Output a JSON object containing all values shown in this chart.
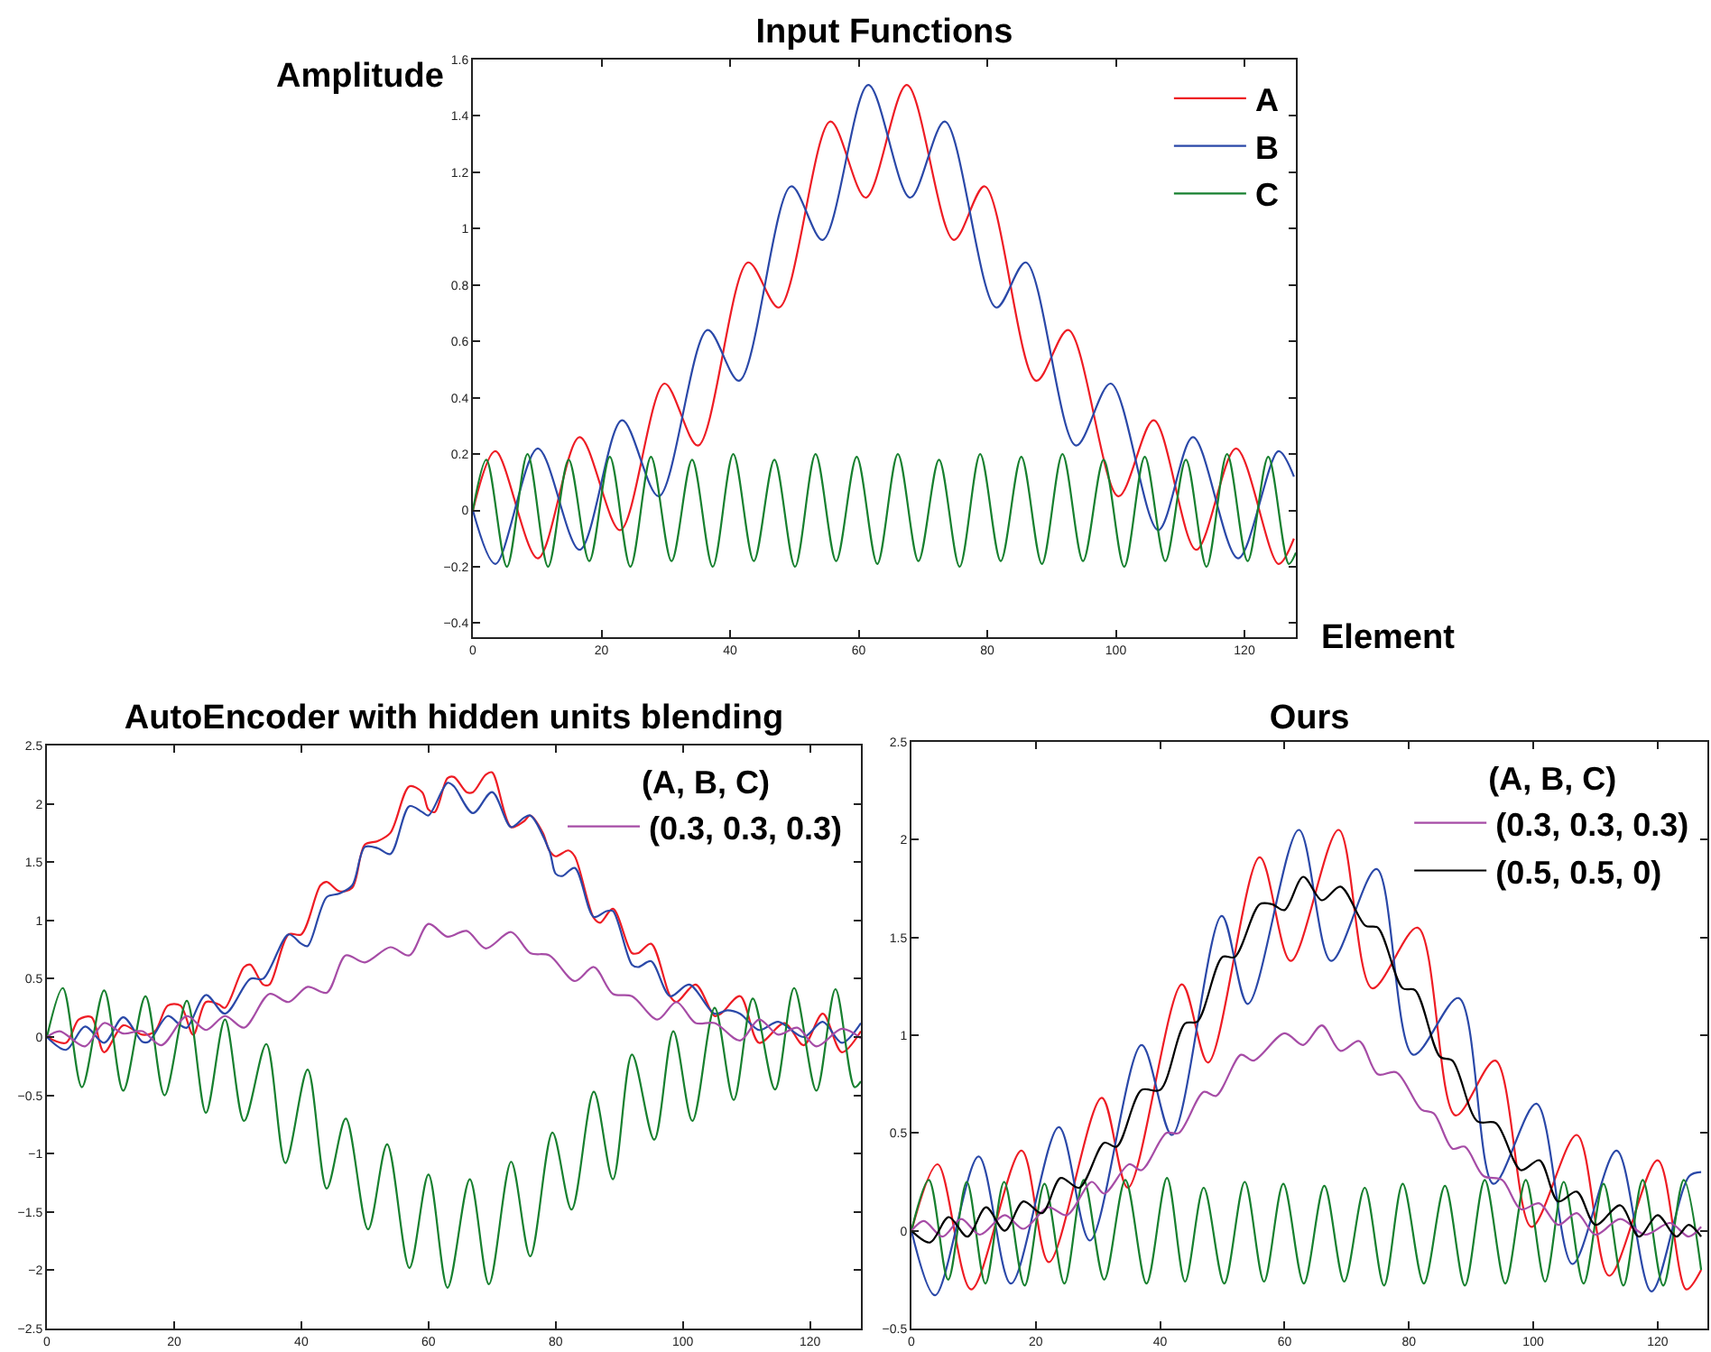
{
  "chart_data": [
    {
      "type": "line",
      "title": "Input Functions",
      "ylabel": "Amplitude",
      "xlabel": "Element",
      "xlim": [
        0,
        128
      ],
      "xticks": [
        0,
        20,
        40,
        60,
        80,
        100,
        120
      ],
      "ylim": [
        -0.45,
        1.6
      ],
      "yticks": [
        -0.4,
        -0.2,
        0,
        0.2,
        0.4,
        0.6,
        0.8,
        1,
        1.2,
        1.4,
        1.6
      ],
      "legend": "top right",
      "series": [
        {
          "name": "A",
          "color": "#ee1c24",
          "x": [
            0,
            3.5,
            10.1,
            16.6,
            22.9,
            29.8,
            35,
            42.8,
            47.6,
            55.6,
            61.1,
            67.5,
            74.8,
            79.6,
            87.6,
            92.6,
            100.4,
            105.9,
            112.5,
            118.7,
            125.3,
            127.7
          ],
          "values": [
            0,
            0.21,
            -0.17,
            0.26,
            -0.07,
            0.45,
            0.23,
            0.88,
            0.72,
            1.38,
            1.11,
            1.51,
            0.96,
            1.15,
            0.46,
            0.64,
            0.05,
            0.32,
            -0.14,
            0.22,
            -0.19,
            -0.1
          ]
        },
        {
          "name": "B",
          "color": "#2a48a8",
          "x": [
            0,
            3.5,
            10.1,
            16.6,
            23.2,
            28.9,
            36.5,
            41.4,
            49.5,
            54.4,
            61.5,
            68,
            73.4,
            81.4,
            86,
            93.8,
            99.2,
            106.6,
            112,
            119,
            125.3,
            127.7
          ],
          "values": [
            0,
            -0.19,
            0.22,
            -0.14,
            0.32,
            0.05,
            0.64,
            0.46,
            1.15,
            0.96,
            1.51,
            1.11,
            1.38,
            0.72,
            0.88,
            0.23,
            0.45,
            -0.07,
            0.26,
            -0.17,
            0.21,
            0.12
          ]
        },
        {
          "name": "C",
          "color": "#17802f",
          "x": [
            0,
            2.1,
            5.3,
            8.5,
            11.7,
            14.9,
            18.1,
            21.3,
            24.5,
            27.7,
            30.9,
            34.1,
            37.3,
            40.5,
            43.7,
            46.9,
            50.1,
            53.3,
            56.5,
            59.7,
            62.9,
            66.1,
            69.3,
            72.5,
            75.7,
            78.9,
            82.1,
            85.3,
            88.5,
            91.7,
            94.9,
            98.1,
            101.3,
            104.5,
            107.7,
            110.9,
            114.1,
            117.3,
            120.5,
            123.7,
            126.9,
            128
          ],
          "values": [
            0,
            0.18,
            -0.2,
            0.2,
            -0.2,
            0.18,
            -0.18,
            0.19,
            -0.2,
            0.19,
            -0.18,
            0.18,
            -0.2,
            0.2,
            -0.18,
            0.18,
            -0.2,
            0.2,
            -0.18,
            0.19,
            -0.19,
            0.2,
            -0.18,
            0.18,
            -0.2,
            0.2,
            -0.18,
            0.19,
            -0.19,
            0.2,
            -0.18,
            0.18,
            -0.2,
            0.19,
            -0.18,
            0.18,
            -0.2,
            0.2,
            -0.18,
            0.19,
            -0.19,
            -0.15
          ]
        }
      ]
    },
    {
      "type": "line",
      "title": "AutoEncoder with hidden units blending",
      "legend_title": "(A, B, C)",
      "xlim": [
        0,
        128
      ],
      "xticks": [
        0,
        20,
        40,
        60,
        80,
        100,
        120
      ],
      "ylim": [
        -2.5,
        2.5
      ],
      "yticks": [
        -2.5,
        -2,
        -1.5,
        -1,
        -0.5,
        0,
        0.5,
        1,
        1.5,
        2,
        2.5
      ],
      "legend": "top right",
      "series": [
        {
          "color": "#ee1c24",
          "x": [
            0,
            3,
            5,
            7,
            9,
            12,
            15,
            17,
            19,
            21,
            23,
            25,
            27,
            28,
            31,
            32,
            34,
            35,
            38,
            40,
            43,
            44,
            46,
            48,
            50,
            52,
            54,
            57,
            59,
            60,
            61,
            63,
            64,
            66,
            67,
            69,
            70,
            73,
            75,
            76,
            78,
            79,
            80,
            82,
            83,
            86,
            87,
            89,
            92,
            93,
            95,
            98,
            99,
            102,
            105,
            106,
            109,
            112,
            116,
            119,
            122,
            125,
            128
          ],
          "values": [
            0,
            -0.05,
            0.15,
            0.17,
            -0.13,
            0.1,
            0.02,
            0.05,
            0.27,
            0.27,
            0.02,
            0.3,
            0.28,
            0.25,
            0.6,
            0.62,
            0.45,
            0.45,
            0.88,
            0.88,
            1.3,
            1.33,
            1.25,
            1.28,
            1.65,
            1.68,
            1.75,
            2.15,
            2.1,
            1.95,
            1.93,
            2.22,
            2.23,
            2.1,
            2.1,
            2.25,
            2.27,
            1.8,
            1.85,
            1.9,
            1.75,
            1.6,
            1.55,
            1.6,
            1.55,
            1.02,
            0.98,
            1.1,
            0.72,
            0.72,
            0.8,
            0.35,
            0.3,
            0.45,
            0.18,
            0.2,
            0.35,
            -0.05,
            0.12,
            -0.07,
            0.2,
            -0.13,
            0.05
          ]
        },
        {
          "color": "#2a48a8",
          "x": [
            0,
            3,
            6,
            9,
            12,
            15,
            16,
            19,
            21,
            22,
            25,
            28,
            32,
            34,
            38,
            40,
            41,
            44,
            46,
            48,
            50,
            52,
            54,
            57,
            59,
            60,
            63,
            64,
            67,
            70,
            73,
            75,
            76,
            79,
            80,
            81,
            83,
            86,
            88,
            89,
            92,
            93,
            95,
            98,
            101,
            105,
            107,
            109,
            112,
            115,
            119,
            122,
            125,
            128
          ],
          "values": [
            0,
            -0.11,
            0.09,
            -0.05,
            0.17,
            -0.04,
            -0.04,
            0.18,
            0.1,
            0.08,
            0.36,
            0.2,
            0.5,
            0.5,
            0.88,
            0.8,
            0.78,
            1.2,
            1.23,
            1.3,
            1.63,
            1.62,
            1.57,
            1.98,
            1.93,
            1.9,
            2.18,
            2.15,
            1.92,
            2.1,
            1.8,
            1.88,
            1.9,
            1.6,
            1.4,
            1.38,
            1.45,
            1.03,
            1.08,
            1.08,
            0.62,
            0.6,
            0.65,
            0.35,
            0.45,
            0.2,
            0.23,
            0.2,
            0.06,
            0.13,
            0,
            0.13,
            -0.05,
            0.12
          ]
        },
        {
          "color": "#17802f",
          "x": [
            0,
            2.5,
            5.5,
            9,
            12,
            15.5,
            18.5,
            22,
            25,
            28,
            31,
            34.5,
            37.5,
            41,
            44,
            47,
            50.5,
            53.5,
            57,
            60,
            63,
            66.5,
            69.5,
            73,
            76,
            79.5,
            82.5,
            86,
            89,
            92,
            95.5,
            98.5,
            101.5,
            105,
            108,
            111,
            114.5,
            117.5,
            121,
            124,
            127,
            128
          ],
          "values": [
            0,
            0.42,
            -0.43,
            0.4,
            -0.46,
            0.35,
            -0.5,
            0.31,
            -0.65,
            0.15,
            -0.72,
            -0.06,
            -1.08,
            -0.28,
            -1.3,
            -0.7,
            -1.65,
            -0.92,
            -1.98,
            -1.18,
            -2.15,
            -1.22,
            -2.12,
            -1.07,
            -1.88,
            -0.82,
            -1.48,
            -0.47,
            -1.22,
            -0.15,
            -0.88,
            0.05,
            -0.72,
            0.25,
            -0.54,
            0.33,
            -0.45,
            0.42,
            -0.46,
            0.41,
            -0.43,
            -0.38
          ]
        },
        {
          "name": "(0.3, 0.3, 0.3)",
          "color": "#a64ca6",
          "x": [
            0,
            2,
            6,
            9,
            12,
            15,
            18,
            22,
            25,
            28,
            31,
            35,
            38,
            41,
            44,
            47,
            50,
            54,
            57,
            60,
            63,
            66,
            69,
            73,
            76,
            79,
            83,
            86,
            89,
            92,
            96,
            99,
            102,
            105,
            109,
            112,
            115,
            118,
            121,
            125,
            128
          ],
          "values": [
            0,
            0.05,
            -0.08,
            0.12,
            0.03,
            0.05,
            -0.07,
            0.18,
            0.06,
            0.18,
            0.08,
            0.37,
            0.3,
            0.43,
            0.38,
            0.7,
            0.64,
            0.77,
            0.7,
            0.97,
            0.86,
            0.91,
            0.76,
            0.9,
            0.72,
            0.7,
            0.48,
            0.6,
            0.37,
            0.35,
            0.15,
            0.3,
            0.12,
            0.12,
            -0.03,
            0.15,
            0.02,
            0.08,
            -0.08,
            0.07,
            -0.01
          ]
        }
      ]
    },
    {
      "type": "line",
      "title": "Ours",
      "legend_title": "(A, B, C)",
      "xlim": [
        0,
        128
      ],
      "xticks": [
        0,
        20,
        40,
        60,
        80,
        100,
        120
      ],
      "ylim": [
        -0.5,
        2.5
      ],
      "yticks": [
        -0.5,
        0,
        0.5,
        1,
        1.5,
        2,
        2.5
      ],
      "legend": "top right",
      "series": [
        {
          "color": "#ee1c24",
          "x": [
            0,
            4.2,
            9.6,
            17.7,
            22.1,
            30.6,
            34.8,
            43.5,
            47.7,
            56,
            61,
            68.7,
            74.1,
            81.4,
            87.5,
            93.9,
            99.7,
            107,
            112.2,
            120,
            124.6,
            127
          ],
          "values": [
            0,
            0.34,
            -0.3,
            0.41,
            -0.16,
            0.68,
            0.22,
            1.26,
            0.86,
            1.91,
            1.38,
            2.05,
            1.24,
            1.55,
            0.59,
            0.87,
            0.02,
            0.49,
            -0.23,
            0.36,
            -0.3,
            -0.2
          ]
        },
        {
          "color": "#2a48a8",
          "x": [
            0,
            3.8,
            10.8,
            16,
            23.7,
            28.7,
            37,
            41.9,
            49.9,
            54.1,
            62.3,
            67.5,
            74.8,
            80.7,
            88,
            93.6,
            100.5,
            106.3,
            113.4,
            119,
            125.1,
            127
          ],
          "values": [
            0,
            -0.33,
            0.38,
            -0.27,
            0.53,
            -0.05,
            0.95,
            0.49,
            1.61,
            1.16,
            2.05,
            1.38,
            1.85,
            0.9,
            1.19,
            0.24,
            0.65,
            -0.17,
            0.41,
            -0.31,
            0.28,
            0.3
          ]
        },
        {
          "color": "#17802f",
          "x": [
            0,
            2.8,
            5.9,
            8.9,
            11.9,
            14.9,
            18.2,
            21.4,
            24.6,
            27.7,
            31,
            34.4,
            37.8,
            41.1,
            44,
            47,
            50.3,
            53.6,
            56.7,
            59.8,
            63.1,
            66.4,
            69.6,
            72.9,
            76,
            79,
            82.4,
            85.8,
            89,
            92.2,
            95.5,
            98.8,
            101.9,
            104.9,
            108.1,
            111.3,
            114.5,
            117.6,
            120.9,
            124.2,
            127
          ],
          "values": [
            0,
            0.26,
            -0.25,
            0.25,
            -0.27,
            0.25,
            -0.28,
            0.24,
            -0.27,
            0.26,
            -0.25,
            0.26,
            -0.27,
            0.27,
            -0.26,
            0.22,
            -0.27,
            0.25,
            -0.26,
            0.24,
            -0.27,
            0.23,
            -0.26,
            0.22,
            -0.28,
            0.24,
            -0.27,
            0.23,
            -0.28,
            0.26,
            -0.27,
            0.26,
            -0.26,
            0.25,
            -0.27,
            0.24,
            -0.28,
            0.26,
            -0.28,
            0.26,
            -0.2
          ]
        },
        {
          "name": "(0.3, 0.3, 0.3)",
          "color": "#a64ca6",
          "x": [
            0,
            2,
            5,
            8,
            11,
            15,
            18,
            22,
            25,
            29,
            31,
            35,
            37,
            41,
            43,
            47,
            49,
            53,
            55,
            60,
            63,
            66,
            69,
            72,
            75,
            78,
            82,
            84,
            87,
            89,
            92,
            95,
            98,
            101,
            104,
            107,
            110,
            114,
            118,
            122,
            125,
            127
          ],
          "values": [
            0,
            0.05,
            -0.03,
            0.06,
            -0.02,
            0.08,
            0.01,
            0.12,
            0.08,
            0.25,
            0.19,
            0.34,
            0.31,
            0.5,
            0.5,
            0.71,
            0.69,
            0.9,
            0.87,
            1.01,
            0.95,
            1.05,
            0.92,
            0.97,
            0.8,
            0.81,
            0.62,
            0.6,
            0.42,
            0.43,
            0.28,
            0.26,
            0.11,
            0.14,
            0.03,
            0.09,
            -0.02,
            0.06,
            -0.02,
            0.04,
            -0.03,
            0.02
          ]
        },
        {
          "name": "(0.5, 0.5, 0)",
          "color": "#000000",
          "x": [
            0,
            3,
            6,
            9,
            12,
            15,
            18,
            21,
            24,
            27,
            31,
            33,
            37,
            40,
            44,
            46,
            50,
            52,
            56,
            58,
            60,
            63,
            66,
            69,
            73,
            75,
            79,
            81,
            85,
            87,
            91,
            94,
            98,
            101,
            104,
            107,
            110,
            114,
            117,
            120,
            123,
            125,
            127
          ],
          "values": [
            0,
            -0.06,
            0.07,
            -0.03,
            0.12,
            0,
            0.15,
            0.09,
            0.27,
            0.22,
            0.45,
            0.43,
            0.72,
            0.72,
            1.06,
            1.07,
            1.4,
            1.4,
            1.67,
            1.67,
            1.64,
            1.81,
            1.69,
            1.76,
            1.56,
            1.55,
            1.24,
            1.23,
            0.89,
            0.87,
            0.56,
            0.55,
            0.31,
            0.36,
            0.15,
            0.2,
            0.03,
            0.13,
            -0.03,
            0.08,
            -0.03,
            0.03,
            -0.03
          ]
        }
      ]
    }
  ]
}
